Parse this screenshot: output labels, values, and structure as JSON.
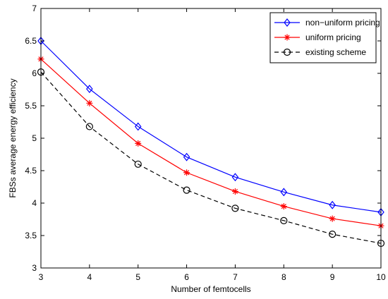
{
  "chart_data": {
    "type": "line",
    "title": "",
    "xlabel": "Number of femtocells",
    "ylabel": "FBSs average energy efficiency",
    "xlim": [
      3,
      10
    ],
    "ylim": [
      3,
      7
    ],
    "x": [
      3,
      4,
      5,
      6,
      7,
      8,
      9,
      10
    ],
    "xticks": [
      "3",
      "4",
      "5",
      "6",
      "7",
      "8",
      "9",
      "10"
    ],
    "yticks": [
      "3",
      "3.5",
      "4",
      "4.5",
      "5",
      "5.5",
      "6",
      "6.5",
      "7"
    ],
    "grid": false,
    "legend_position": "top-right",
    "series": [
      {
        "name": "non−uniform pricing",
        "values": [
          6.5,
          5.76,
          5.18,
          4.71,
          4.4,
          4.17,
          3.97,
          3.86
        ],
        "color": "#0000ff",
        "line_style": "solid",
        "marker": "diamond"
      },
      {
        "name": "uniform pricing",
        "values": [
          6.22,
          5.54,
          4.92,
          4.47,
          4.18,
          3.95,
          3.76,
          3.65
        ],
        "color": "#ff0000",
        "line_style": "solid",
        "marker": "asterisk"
      },
      {
        "name": "existing scheme",
        "values": [
          6.02,
          5.18,
          4.6,
          4.2,
          3.92,
          3.73,
          3.52,
          3.38
        ],
        "color": "#000000",
        "line_style": "dashed",
        "marker": "circle"
      }
    ]
  }
}
